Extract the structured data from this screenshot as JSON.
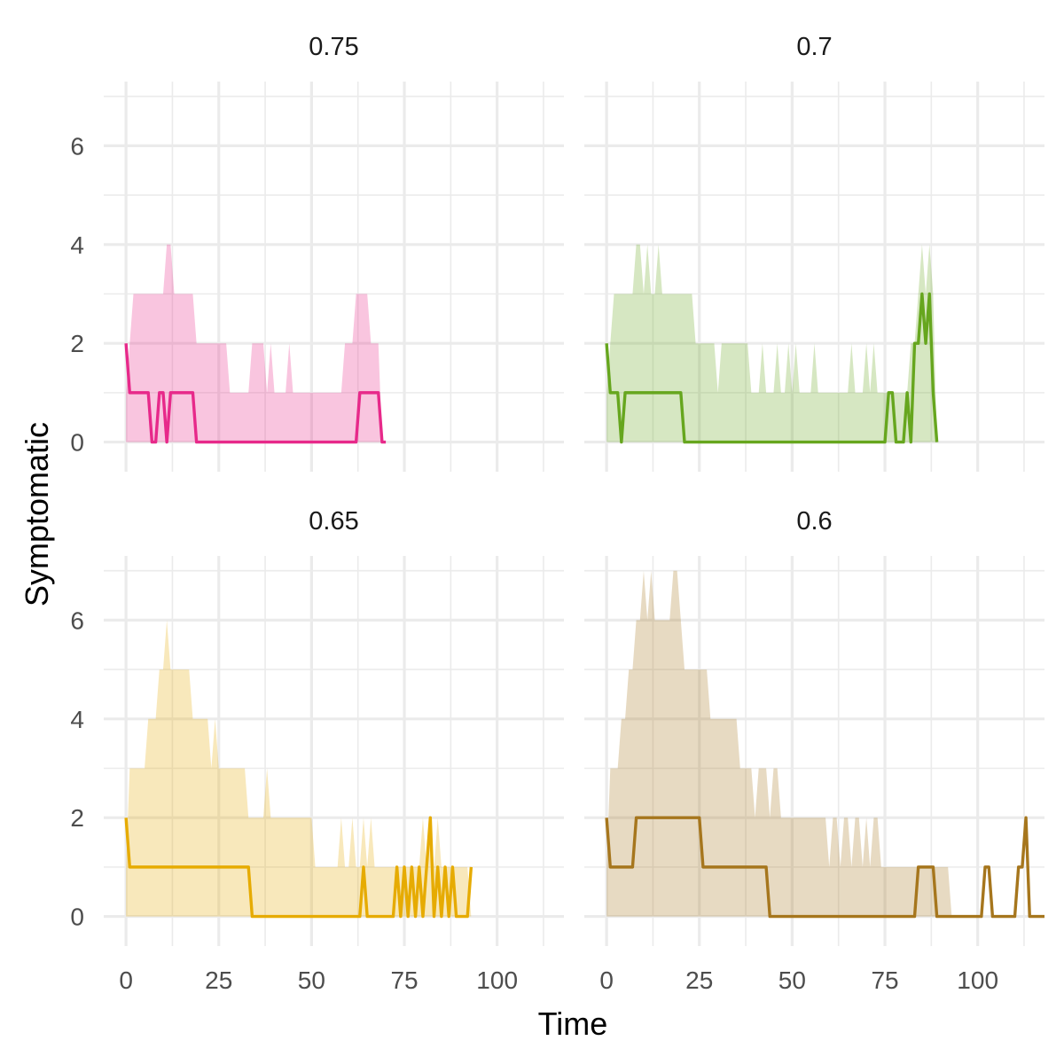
{
  "chart_data": {
    "type": "area",
    "xlabel": "Time",
    "ylabel": "Symptomatic",
    "xlim": [
      -6,
      118
    ],
    "ylim": [
      -0.6,
      7.3
    ],
    "x_ticks": [
      0,
      25,
      50,
      75,
      100
    ],
    "y_ticks": [
      0,
      2,
      4,
      6
    ],
    "grid": true,
    "panels": [
      {
        "title": "0.75",
        "color": "#E7298A",
        "ribbon": {
          "x": [
            0,
            1,
            2,
            3,
            8,
            9,
            10,
            11,
            12,
            13,
            14,
            15,
            16,
            17,
            18,
            19,
            20,
            21,
            22,
            23,
            24,
            25,
            26,
            27,
            28,
            29,
            30,
            31,
            32,
            33,
            34,
            35,
            36,
            37,
            38,
            39,
            40,
            41,
            42,
            43,
            44,
            45,
            46,
            47,
            48,
            49,
            50,
            51,
            52,
            53,
            54,
            55,
            56,
            57,
            58,
            59,
            60,
            61,
            62,
            63,
            64,
            65,
            66,
            67,
            68,
            69,
            70
          ],
          "upper": [
            1,
            2,
            3,
            3,
            3,
            3,
            3,
            4,
            4,
            3,
            3,
            3,
            3,
            3,
            3,
            2,
            2,
            2,
            2,
            2,
            2,
            2,
            2,
            2,
            1,
            1,
            1,
            1,
            1,
            1,
            2,
            2,
            2,
            2,
            1,
            2,
            1,
            1,
            1,
            1,
            2,
            1,
            1,
            1,
            1,
            1,
            1,
            1,
            1,
            1,
            1,
            1,
            1,
            1,
            1,
            2,
            2,
            2,
            3,
            3,
            3,
            3,
            2,
            2,
            2,
            0,
            0
          ]
        },
        "line": {
          "x": [
            0,
            1,
            4,
            5,
            6,
            7,
            8,
            9,
            10,
            11,
            12,
            13,
            14,
            15,
            16,
            17,
            18,
            19,
            62,
            63,
            64,
            65,
            66,
            67,
            68,
            69,
            70
          ],
          "y": [
            2,
            1,
            1,
            1,
            1,
            0,
            0,
            1,
            1,
            0,
            1,
            1,
            1,
            1,
            1,
            1,
            1,
            0,
            0,
            1,
            1,
            1,
            1,
            1,
            1,
            0,
            0
          ]
        }
      },
      {
        "title": "0.7",
        "color": "#66A61E",
        "ribbon": {
          "x": [
            0,
            1,
            2,
            3,
            4,
            5,
            6,
            7,
            8,
            9,
            10,
            11,
            12,
            13,
            14,
            15,
            16,
            17,
            18,
            19,
            20,
            21,
            22,
            23,
            24,
            25,
            26,
            27,
            28,
            29,
            30,
            31,
            32,
            33,
            34,
            35,
            36,
            37,
            38,
            39,
            40,
            41,
            42,
            43,
            44,
            45,
            46,
            47,
            48,
            49,
            50,
            51,
            52,
            53,
            54,
            55,
            56,
            57,
            58,
            59,
            60,
            61,
            62,
            63,
            64,
            65,
            66,
            67,
            68,
            69,
            70,
            71,
            72,
            73,
            74,
            75,
            76,
            77,
            78,
            79,
            80,
            81,
            82,
            83,
            84,
            85,
            86,
            87,
            88,
            89
          ],
          "upper": [
            1,
            2,
            3,
            3,
            3,
            3,
            3,
            3,
            4,
            4,
            3,
            4,
            3,
            3,
            4,
            3,
            3,
            3,
            3,
            3,
            3,
            3,
            3,
            3,
            2,
            2,
            2,
            2,
            2,
            2,
            1,
            2,
            2,
            2,
            2,
            2,
            2,
            2,
            2,
            1,
            1,
            1,
            2,
            1,
            1,
            1,
            2,
            1,
            1,
            2,
            1,
            2,
            1,
            1,
            1,
            1,
            2,
            1,
            1,
            1,
            1,
            1,
            1,
            1,
            1,
            1,
            2,
            1,
            1,
            1,
            2,
            1,
            2,
            1,
            1,
            1,
            1,
            1,
            1,
            1,
            1,
            1,
            2,
            2,
            3,
            4,
            3,
            4,
            3,
            0
          ]
        },
        "line": {
          "x": [
            0,
            1,
            2,
            3,
            4,
            5,
            6,
            7,
            8,
            9,
            10,
            11,
            12,
            13,
            14,
            15,
            16,
            17,
            18,
            19,
            20,
            21,
            75,
            76,
            77,
            78,
            79,
            80,
            81,
            82,
            83,
            84,
            85,
            86,
            87,
            88,
            89
          ],
          "y": [
            2,
            1,
            1,
            1,
            0,
            1,
            1,
            1,
            1,
            1,
            1,
            1,
            1,
            1,
            1,
            1,
            1,
            1,
            1,
            1,
            1,
            0,
            0,
            1,
            1,
            0,
            0,
            0,
            1,
            0,
            2,
            2,
            3,
            2,
            3,
            1,
            0
          ]
        }
      },
      {
        "title": "0.65",
        "color": "#E6AB02",
        "ribbon": {
          "x": [
            0,
            1,
            2,
            3,
            4,
            5,
            6,
            7,
            8,
            9,
            10,
            11,
            12,
            13,
            14,
            15,
            16,
            17,
            18,
            19,
            20,
            21,
            22,
            23,
            24,
            25,
            26,
            27,
            28,
            29,
            30,
            31,
            32,
            33,
            34,
            35,
            36,
            37,
            38,
            39,
            40,
            41,
            42,
            43,
            44,
            45,
            46,
            47,
            48,
            49,
            50,
            51,
            52,
            53,
            54,
            55,
            56,
            57,
            58,
            59,
            60,
            61,
            62,
            63,
            64,
            65,
            66,
            67,
            68,
            69,
            70,
            71,
            72,
            73,
            74,
            75,
            76,
            77,
            78,
            79,
            80,
            81,
            82,
            83,
            84,
            85,
            86,
            87,
            88,
            89,
            90,
            91,
            92,
            93
          ],
          "upper": [
            1,
            3,
            3,
            3,
            3,
            3,
            4,
            4,
            4,
            5,
            5,
            6,
            5,
            5,
            5,
            5,
            5,
            5,
            4,
            4,
            4,
            4,
            4,
            3,
            4,
            3,
            3,
            3,
            3,
            3,
            3,
            3,
            3,
            2,
            2,
            2,
            2,
            2,
            3,
            2,
            2,
            2,
            2,
            2,
            2,
            2,
            2,
            2,
            2,
            2,
            2,
            1,
            1,
            1,
            1,
            1,
            1,
            1,
            2,
            1,
            1,
            2,
            1,
            1,
            2,
            1,
            2,
            1,
            1,
            1,
            1,
            1,
            1,
            1,
            1,
            1,
            1,
            1,
            1,
            1,
            2,
            1,
            2,
            1,
            2,
            1,
            1,
            1,
            1,
            1,
            1,
            1,
            1,
            0
          ]
        },
        "line": {
          "x": [
            0,
            1,
            33,
            34,
            63,
            64,
            65,
            72,
            73,
            74,
            75,
            76,
            77,
            78,
            79,
            80,
            81,
            82,
            83,
            84,
            85,
            86,
            87,
            88,
            89,
            90,
            91,
            92,
            93
          ],
          "y": [
            2,
            1,
            1,
            0,
            0,
            1,
            0,
            0,
            1,
            0,
            1,
            0,
            1,
            0,
            1,
            0,
            1,
            2,
            0,
            1,
            0,
            1,
            0,
            1,
            0,
            0,
            0,
            0,
            1
          ]
        }
      },
      {
        "title": "0.6",
        "color": "#A6761D",
        "ribbon": {
          "x": [
            0,
            1,
            2,
            3,
            4,
            5,
            6,
            7,
            8,
            9,
            10,
            11,
            12,
            13,
            14,
            15,
            16,
            17,
            18,
            19,
            20,
            21,
            22,
            23,
            24,
            25,
            26,
            27,
            28,
            29,
            30,
            31,
            32,
            33,
            34,
            35,
            36,
            37,
            38,
            39,
            40,
            41,
            42,
            43,
            44,
            45,
            46,
            47,
            48,
            49,
            50,
            51,
            52,
            53,
            54,
            55,
            56,
            57,
            58,
            59,
            60,
            61,
            62,
            63,
            64,
            65,
            66,
            67,
            68,
            69,
            70,
            71,
            72,
            73,
            74,
            75,
            76,
            77,
            78,
            79,
            80,
            81,
            82,
            83,
            84,
            85,
            86,
            87,
            88,
            89,
            90,
            91,
            92,
            93
          ],
          "upper": [
            1,
            3,
            3,
            3,
            4,
            4,
            5,
            5,
            6,
            6,
            7,
            6,
            7,
            6,
            6,
            6,
            6,
            6,
            7,
            7,
            6,
            5,
            5,
            5,
            5,
            5,
            5,
            5,
            4,
            4,
            4,
            4,
            4,
            4,
            4,
            4,
            3,
            3,
            3,
            3,
            2,
            3,
            3,
            3,
            2,
            3,
            3,
            2,
            2,
            2,
            2,
            2,
            2,
            2,
            2,
            2,
            2,
            2,
            2,
            2,
            1,
            2,
            2,
            1,
            2,
            2,
            1,
            2,
            2,
            1,
            2,
            1,
            2,
            2,
            1,
            1,
            1,
            1,
            1,
            1,
            1,
            1,
            1,
            1,
            1,
            1,
            1,
            1,
            1,
            1,
            1,
            1,
            1,
            0
          ]
        },
        "line": {
          "x": [
            0,
            1,
            2,
            7,
            8,
            9,
            24,
            25,
            26,
            43,
            44,
            45,
            83,
            84,
            87,
            88,
            89,
            101,
            102,
            103,
            104,
            110,
            111,
            112,
            113,
            114,
            118
          ],
          "y": [
            2,
            1,
            1,
            1,
            2,
            2,
            2,
            2,
            1,
            1,
            0,
            0,
            0,
            1,
            1,
            1,
            0,
            0,
            1,
            1,
            0,
            0,
            1,
            1,
            2,
            0,
            0
          ]
        }
      }
    ]
  }
}
